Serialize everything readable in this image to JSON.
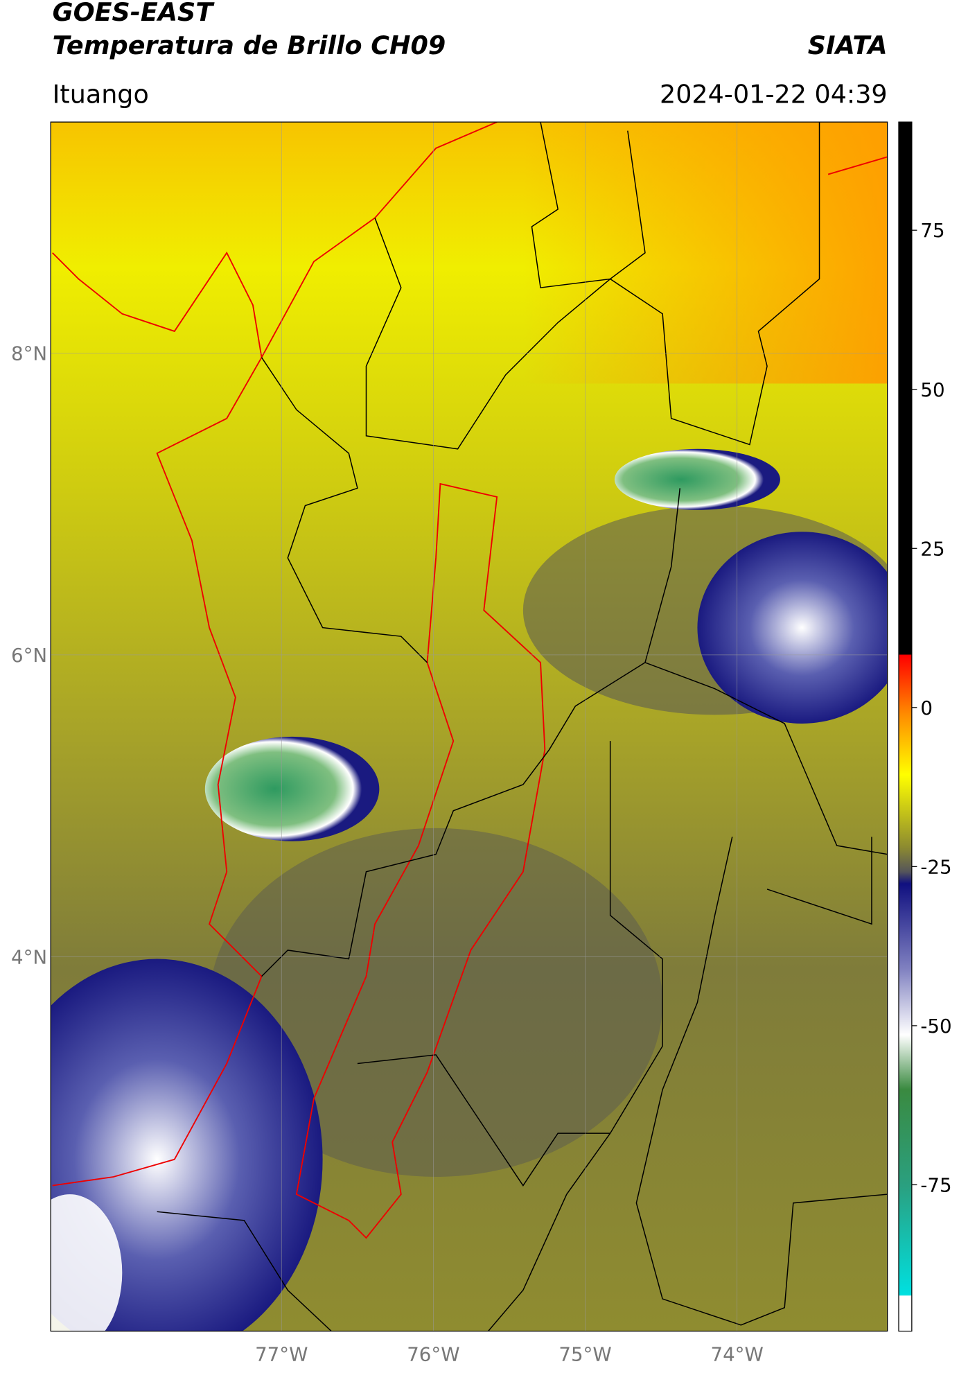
{
  "header": {
    "title_line1": "GOES-EAST",
    "title_line2": "Temperatura de Brillo CH09",
    "source": "SIATA",
    "region": "Ituango",
    "datetime": "2024-01-22 04:39"
  },
  "map": {
    "xlim": [
      -78.52,
      -73.01
    ],
    "ylim": [
      1.52,
      9.53
    ],
    "grid": true,
    "xticks": [
      {
        "value": -77,
        "label": "77°W"
      },
      {
        "value": -76,
        "label": "76°W"
      },
      {
        "value": -75,
        "label": "75°W"
      },
      {
        "value": -74,
        "label": "74°W"
      }
    ],
    "yticks": [
      {
        "value": 8,
        "label": "8°N"
      },
      {
        "value": 6,
        "label": "6°N"
      },
      {
        "value": 4,
        "label": "4°N"
      }
    ]
  },
  "colorbar": {
    "clim": [
      -98,
      92
    ],
    "ticks": [
      75,
      50,
      25,
      0,
      -25,
      -50,
      -75
    ]
  }
}
